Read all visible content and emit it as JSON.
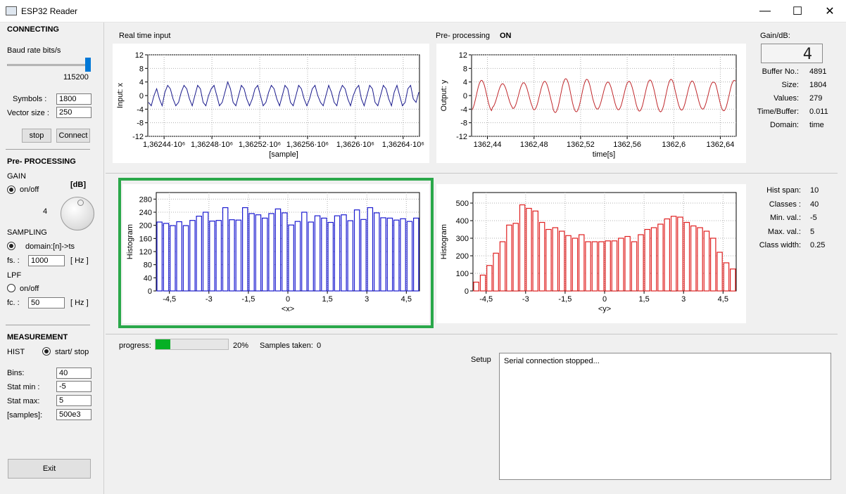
{
  "window": {
    "title": "ESP32 Reader",
    "min": "—",
    "max": "☐",
    "close": "✕"
  },
  "sidebar": {
    "connecting_title": "CONNECTING",
    "baud_label": "Baud rate bits/s",
    "baud_value": "115200",
    "baud_fraction": 1.0,
    "symbols_label": "Symbols :",
    "symbols_value": "1800",
    "vector_label": "Vector size :",
    "vector_value": "250",
    "stop_label": "stop",
    "connect_label": "Connect",
    "preproc_title": "Pre- PROCESSING",
    "gain_label": "GAIN",
    "gain_onoff": "on/off",
    "db_label": "[dB]",
    "gain_value": "4",
    "sampling_label": "SAMPLING",
    "domain_label": "domain:[n]->ts",
    "fs_label": "fs. :",
    "fs_value": "1000",
    "fs_unit": "[ Hz ]",
    "lpf_label": "LPF",
    "lpf_onoff": "on/off",
    "fc_label": "fc. :",
    "fc_value": "50",
    "fc_unit": "[ Hz ]",
    "measurement_title": "MEASUREMENT",
    "hist_label": "HIST",
    "startstop_label": "start/ stop",
    "bins_label": "Bins:",
    "bins_value": "40",
    "statmin_label": "Stat min :",
    "statmin_value": "-5",
    "statmax_label": "Stat max:",
    "statmax_value": "5",
    "samples_label": "[samples]:",
    "samples_value": "500e3",
    "exit_label": "Exit"
  },
  "top": {
    "realtime_title": "Real time input",
    "preproc_title": "Pre- processing",
    "preproc_state": "ON",
    "gain_db_label": "Gain/dB:",
    "gain_lcd": "4",
    "stats": [
      {
        "label": "Buffer No.:",
        "value": "4891"
      },
      {
        "label": "Size:",
        "value": "1804"
      },
      {
        "label": "Values:",
        "value": "279"
      },
      {
        "label": "Time/Buffer:",
        "value": "0.011"
      },
      {
        "label": "Domain:",
        "value": "time"
      }
    ]
  },
  "hist_stats": [
    {
      "label": "Hist span:",
      "value": "10"
    },
    {
      "label": "Classes :",
      "value": "40"
    },
    {
      "label": "Min. val.:",
      "value": "-5"
    },
    {
      "label": "Max. val.:",
      "value": "5"
    },
    {
      "label": "Class width:",
      "value": "0.25"
    }
  ],
  "bottom": {
    "progress_label": "progress:",
    "progress_fraction": 0.2,
    "progress_text": "20%",
    "samples_taken_label": "Samples taken:",
    "samples_taken_value": "0",
    "setup_label": "Setup",
    "log_text": "Serial connection stopped..."
  },
  "colors": {
    "accent_green": "#2aa84a",
    "input_line": "#1a1a8c",
    "output_line": "#c0282c",
    "hist_x": "#1a1ad0",
    "hist_y": "#e02020",
    "progress": "#06b025"
  },
  "chart_data": [
    {
      "type": "line",
      "ylabel": "Input: x",
      "xlabel": "[sample]",
      "xticks": [
        "1,36244·10⁶",
        "1,36248·10⁶",
        "1,36252·10⁶",
        "1,36256·10⁶",
        "1,3626·10⁶",
        "1,36264·10⁶"
      ],
      "ylim": [
        -12,
        12
      ],
      "yticks": [
        "12",
        "8",
        "4",
        "0",
        "-4",
        "-8",
        "-12"
      ],
      "grid": true,
      "series": [
        {
          "y": [
            -2,
            -3,
            0,
            2,
            -1,
            -3,
            1,
            3,
            2,
            -1,
            -3,
            -2,
            1,
            3,
            2,
            -1,
            -3,
            0,
            3,
            2,
            -2,
            -3,
            0,
            2,
            3,
            0,
            -3,
            -2,
            1,
            4,
            2,
            -2,
            -3,
            0,
            3,
            2,
            -1,
            -3,
            -1,
            2,
            3,
            0,
            -3,
            -2,
            1,
            3,
            2,
            -1,
            -3,
            0,
            3,
            2,
            -2,
            -3,
            0,
            3,
            2,
            -1,
            -3,
            -1,
            2,
            3,
            0,
            -2,
            -3,
            0,
            3,
            1,
            -2,
            -3,
            1,
            3,
            2,
            -1,
            -3,
            0,
            2,
            3,
            -1,
            -3,
            0,
            3,
            2,
            -2,
            -3,
            0,
            3,
            2,
            -1,
            -3,
            1,
            3,
            0,
            -3,
            -2,
            2,
            3,
            -1,
            -2,
            1
          ]
        }
      ]
    },
    {
      "type": "line",
      "ylabel": "Output: y",
      "xlabel": "time[s]",
      "xticks": [
        "1362,44",
        "1362,48",
        "1362,52",
        "1362,56",
        "1362,6",
        "1362,64"
      ],
      "ylim": [
        -12,
        12
      ],
      "yticks": [
        "12",
        "8",
        "4",
        "0",
        "-4",
        "-8",
        "-12"
      ],
      "grid": true,
      "series": [
        {
          "freq": 12.5,
          "amps": [
            4.5,
            3.5,
            3.8,
            4.2,
            5.0,
            4.8,
            4.0,
            4.2,
            4.6,
            4.8,
            4.3,
            4.0,
            4.5
          ]
        }
      ]
    },
    {
      "type": "bar",
      "ylabel": "Histogram",
      "xlabel": "<x>",
      "xticks": [
        "-4,5",
        "-3",
        "-1,5",
        "0",
        "1,5",
        "3",
        "4,5"
      ],
      "xlim": [
        -5,
        5
      ],
      "ylim": [
        0,
        300
      ],
      "yticks": [
        "280",
        "240",
        "200",
        "160",
        "120",
        "80",
        "40",
        "0"
      ],
      "grid": true,
      "series": [
        {
          "values": [
            210,
            206,
            199,
            211,
            199,
            215,
            228,
            240,
            213,
            215,
            254,
            217,
            216,
            254,
            236,
            232,
            222,
            236,
            250,
            238,
            201,
            212,
            240,
            210,
            229,
            222,
            209,
            229,
            232,
            214,
            247,
            218,
            254,
            238,
            223,
            222,
            216,
            220,
            212,
            222
          ]
        }
      ]
    },
    {
      "type": "bar",
      "ylabel": "Histogram",
      "xlabel": "<y>",
      "xticks": [
        "-4,5",
        "-3",
        "-1,5",
        "0",
        "1,5",
        "3",
        "4,5"
      ],
      "xlim": [
        -5,
        5
      ],
      "ylim": [
        0,
        560
      ],
      "yticks": [
        "500",
        "400",
        "300",
        "200",
        "100",
        "0"
      ],
      "grid": true,
      "series": [
        {
          "values": [
            50,
            90,
            145,
            215,
            280,
            375,
            385,
            490,
            470,
            455,
            390,
            350,
            360,
            340,
            315,
            300,
            320,
            280,
            280,
            280,
            285,
            285,
            300,
            310,
            280,
            320,
            350,
            360,
            380,
            410,
            425,
            420,
            390,
            370,
            360,
            340,
            300,
            220,
            160,
            125
          ]
        }
      ]
    }
  ]
}
